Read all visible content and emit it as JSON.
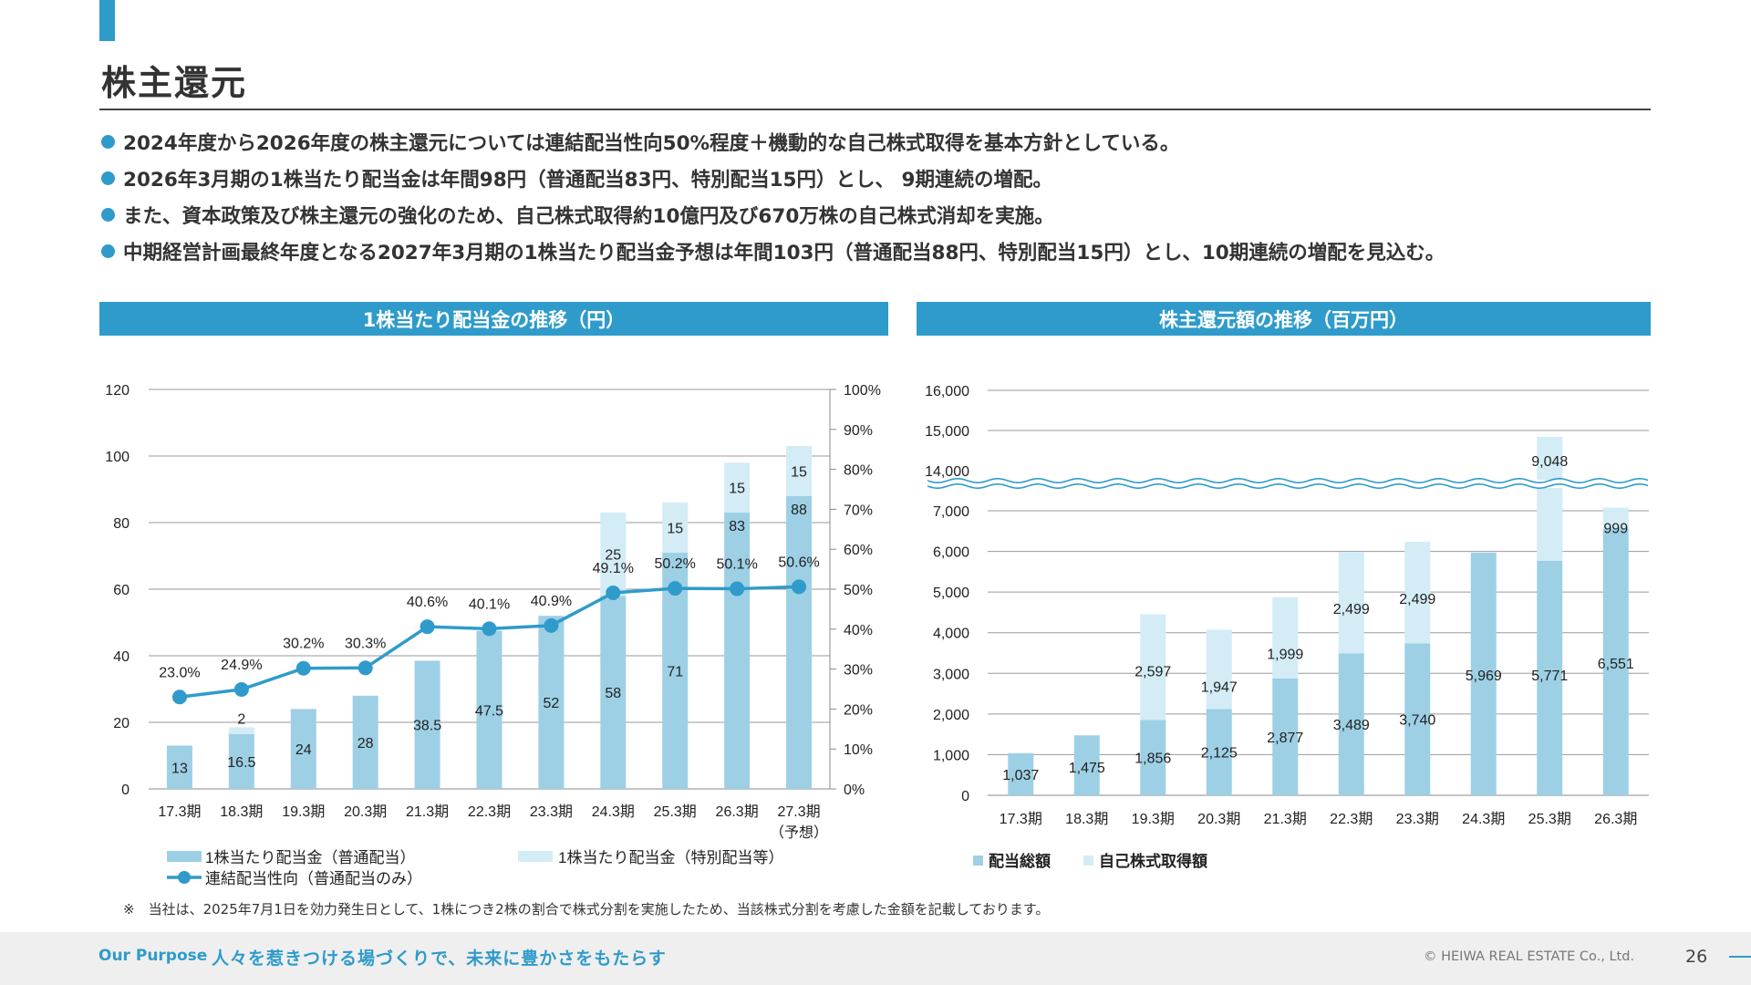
{
  "header": {
    "title": "株主還元",
    "bullets": [
      "2024年度から2026年度の株主還元については連結配当性向50%程度＋機動的な自己株式取得を基本方針としている。",
      "2026年3月期の1株当たり配当金は年間98円（普通配当83円、特別配当15円）とし、 9期連続の増配。",
      "また、資本政策及び株主還元の強化のため、自己株式取得約10億円及び670万株の自己株式消却を実施。",
      "中期経営計画最終年度となる2027年3月期の1株当たり配当金予想は年間103円（普通配当88円、特別配当15円）とし、10期連続の増配を見込む。"
    ]
  },
  "colors": {
    "accent": "#2f9bca",
    "bar_main": "#9dd0e5",
    "bar_light": "#d3ecf6",
    "line": "#2f9bca"
  },
  "panels": {
    "left_title": "1株当たり配当金の推移（円）",
    "right_title": "株主還元額の推移（百万円）"
  },
  "chart_data": [
    {
      "type": "bar",
      "stacked": true,
      "title": "1株当たり配当金の推移（円）",
      "categories": [
        "17.3期",
        "18.3期",
        "19.3期",
        "20.3期",
        "21.3期",
        "22.3期",
        "23.3期",
        "24.3期",
        "25.3期",
        "26.3期",
        "27.3期"
      ],
      "category_sublabels": [
        "",
        "",
        "",
        "",
        "",
        "",
        "",
        "",
        "",
        "",
        "（予想）"
      ],
      "series": [
        {
          "name": "1株当たり配当金（普通配当）",
          "type": "bar",
          "values": [
            13,
            16.5,
            24,
            28,
            38.5,
            47.5,
            52,
            58,
            71,
            83,
            88
          ],
          "labels": [
            "13",
            "16.5",
            "24",
            "28",
            "38.5",
            "47.5",
            "52",
            "58",
            "71",
            "83",
            "88"
          ]
        },
        {
          "name": "1株当たり配当金（特別配当等）",
          "type": "bar",
          "values": [
            0,
            2,
            0,
            0,
            0,
            0,
            0,
            25,
            15,
            15,
            15
          ],
          "labels": [
            "",
            "2",
            "",
            "",
            "",
            "",
            "",
            "25",
            "15",
            "15",
            "15"
          ]
        },
        {
          "name": "連結配当性向（普通配当のみ）",
          "type": "line",
          "axis": "right",
          "values": [
            23.0,
            24.9,
            30.2,
            30.3,
            40.6,
            40.1,
            40.9,
            49.1,
            50.2,
            50.1,
            50.6
          ],
          "labels": [
            "23.0%",
            "24.9%",
            "30.2%",
            "30.3%",
            "40.6%",
            "40.1%",
            "40.9%",
            "49.1%",
            "50.2%",
            "50.1%",
            "50.6%"
          ]
        }
      ],
      "ylim": [
        0,
        120
      ],
      "yticks": [
        "0",
        "20",
        "40",
        "60",
        "80",
        "100",
        "120"
      ],
      "y2lim": [
        0,
        100
      ],
      "y2ticks": [
        "0%",
        "10%",
        "20%",
        "30%",
        "40%",
        "50%",
        "60%",
        "70%",
        "80%",
        "90%",
        "100%"
      ],
      "grid": true,
      "legend": "bottom"
    },
    {
      "type": "bar",
      "stacked": true,
      "title": "株主還元額の推移（百万円）",
      "categories": [
        "17.3期",
        "18.3期",
        "19.3期",
        "20.3期",
        "21.3期",
        "22.3期",
        "23.3期",
        "24.3期",
        "25.3期",
        "26.3期"
      ],
      "series": [
        {
          "name": "配当総額",
          "values": [
            1037,
            1475,
            1856,
            2125,
            2877,
            3489,
            3740,
            5969,
            5771,
            6551
          ],
          "labels": [
            "1,037",
            "1,475",
            "1,856",
            "2,125",
            "2,877",
            "3,489",
            "3,740",
            "5,969",
            "5,771",
            "6,551"
          ]
        },
        {
          "name": "自己株式取得額",
          "values": [
            0,
            0,
            2597,
            1947,
            1999,
            2499,
            2499,
            0,
            9048,
            999
          ],
          "labels": [
            "",
            "",
            "2,597",
            "1,947",
            "1,999",
            "2,499",
            "2,499",
            "",
            "9,048",
            "999"
          ]
        }
      ],
      "ylim": [
        0,
        16000
      ],
      "axis_break": [
        7000,
        14000
      ],
      "yticks": [
        "0",
        "1,000",
        "2,000",
        "3,000",
        "4,000",
        "5,000",
        "6,000",
        "7,000",
        "14,000",
        "15,000",
        "16,000"
      ],
      "grid": true,
      "legend": "bottom"
    }
  ],
  "footnote": "※　当社は、2025年7月1日を効力発生日として、1株につき2株の割合で株式分割を実施したため、当該株式分割を考慮した金額を記載しております。",
  "footer": {
    "purpose_label": "Our Purpose",
    "tagline": "人々を惹きつける場づくりで、未来に豊かさをもたらす",
    "copyright": "© HEIWA REAL ESTATE Co., Ltd.",
    "page_number": "26"
  }
}
